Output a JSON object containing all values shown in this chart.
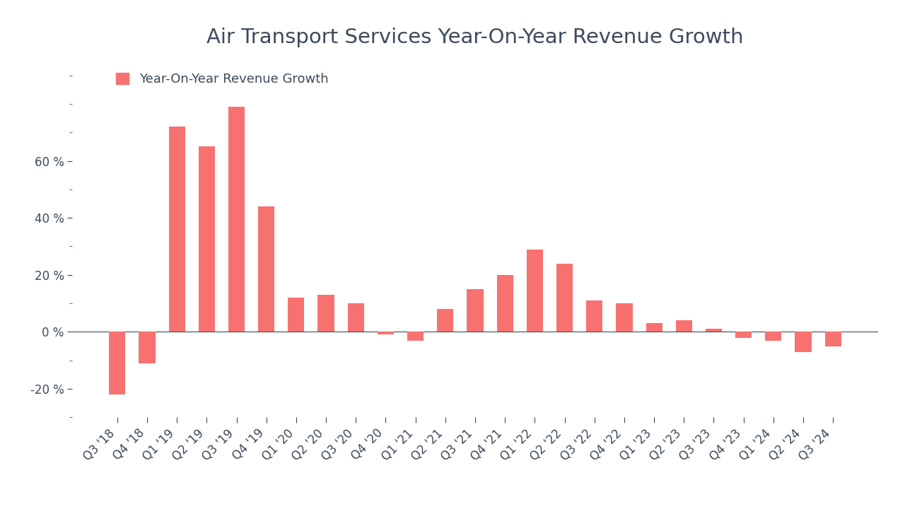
{
  "title": "Air Transport Services Year-On-Year Revenue Growth",
  "legend_label": "Year-On-Year Revenue Growth",
  "bar_color": "#F87171",
  "background_color": "#ffffff",
  "categories": [
    "Q3 '18",
    "Q4 '18",
    "Q1 '19",
    "Q2 '19",
    "Q3 '19",
    "Q4 '19",
    "Q1 '20",
    "Q2 '20",
    "Q3 '20",
    "Q4 '20",
    "Q1 '21",
    "Q2 '21",
    "Q3 '21",
    "Q4 '21",
    "Q1 '22",
    "Q2 '22",
    "Q3 '22",
    "Q4 '22",
    "Q1 '23",
    "Q2 '23",
    "Q3 '23",
    "Q4 '23",
    "Q1 '24",
    "Q2 '24",
    "Q3 '24"
  ],
  "values": [
    -22,
    -11,
    72,
    65,
    79,
    44,
    12,
    13,
    10,
    -1,
    -3,
    8,
    15,
    20,
    29,
    24,
    11,
    10,
    3,
    4,
    1,
    -2,
    -3,
    -7,
    -5
  ],
  "ylim": [
    -30,
    95
  ],
  "yticks_major": [
    -20,
    0,
    20,
    40,
    60
  ],
  "yticks_minor": [
    -30,
    -10,
    10,
    30,
    50,
    70,
    80,
    90
  ],
  "title_fontsize": 21,
  "tick_fontsize": 12,
  "legend_fontsize": 13,
  "title_color": "#3d4a5c",
  "tick_color": "#3d4a5c",
  "legend_marker_color": "#F87171",
  "bar_width": 0.55
}
